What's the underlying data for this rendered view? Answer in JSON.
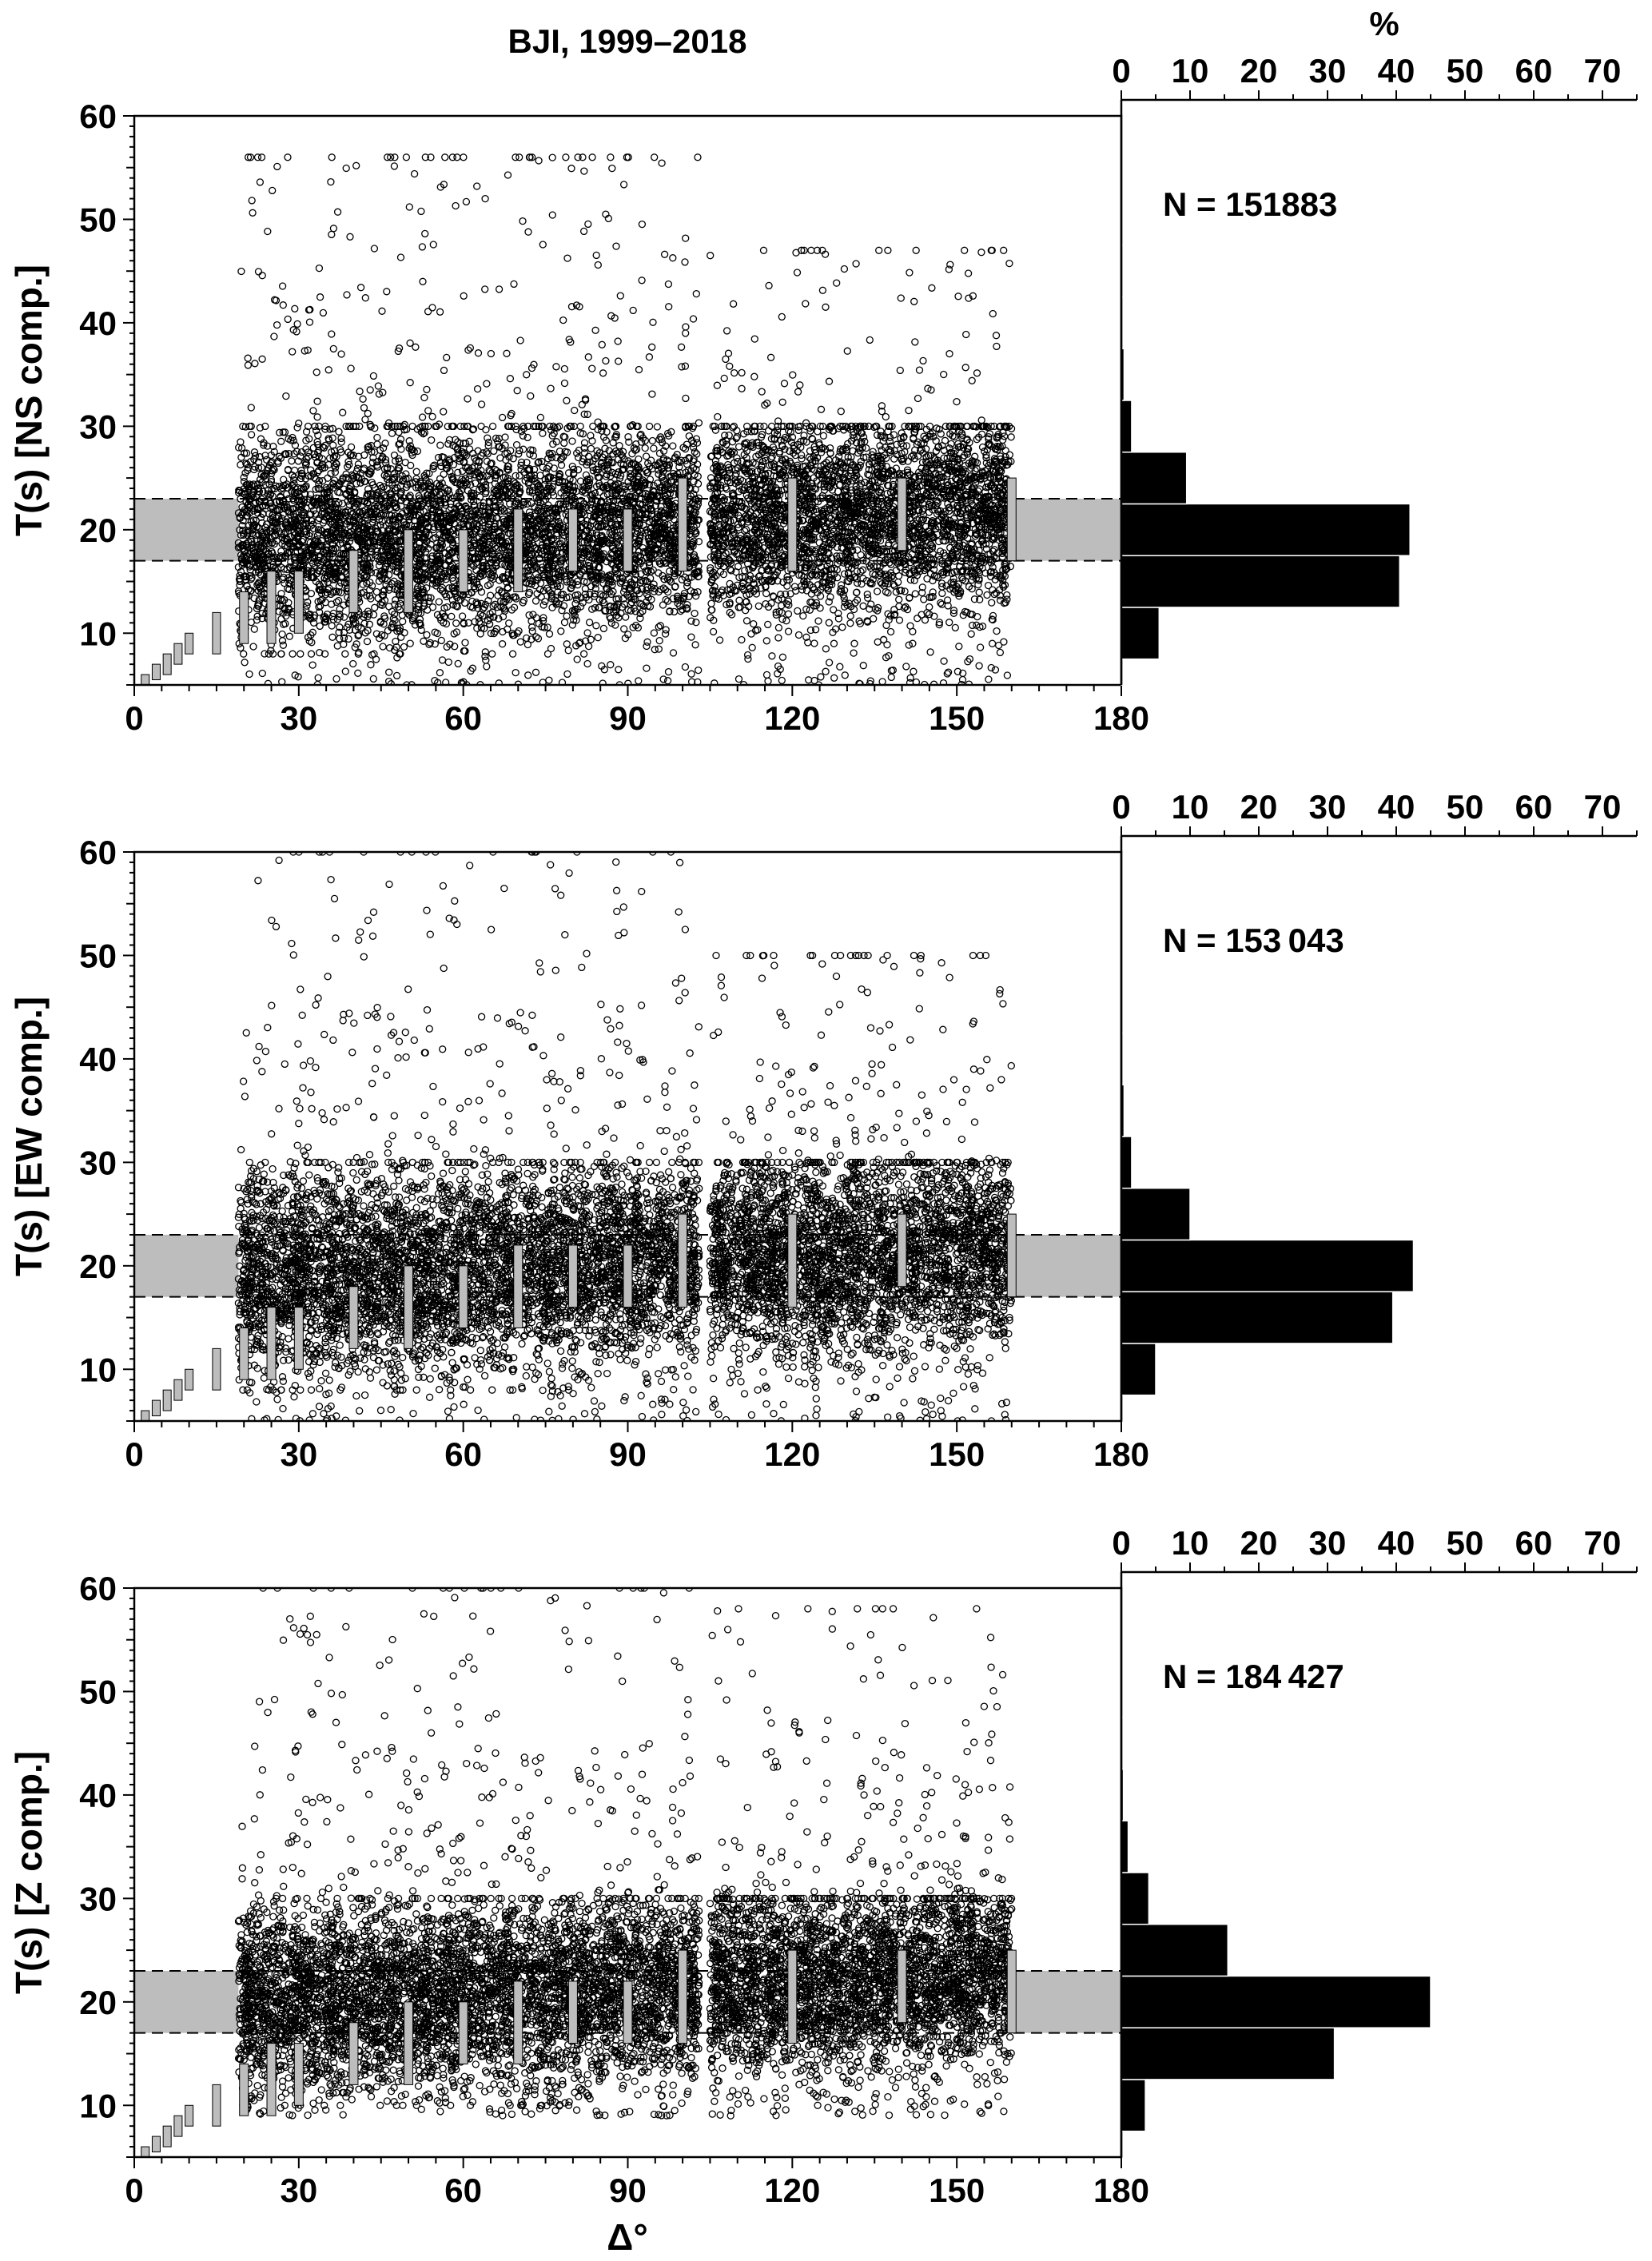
{
  "figure": {
    "title": "BJI, 1999–2018",
    "x_axis_label": "Δ°",
    "hist_axis_label": "%"
  },
  "chart_data": [
    {
      "type": "scatter",
      "panel": "NS",
      "ylabel": "T(s) [NS comp.]",
      "xlabel": "",
      "xlim": [
        0,
        180
      ],
      "ylim": [
        5,
        60
      ],
      "xticks": [
        0,
        30,
        60,
        90,
        120,
        150,
        180
      ],
      "yticks": [
        10,
        20,
        30,
        40,
        50,
        60
      ],
      "n_label": "N = 151883",
      "band": {
        "y_min": 17,
        "y_max": 23,
        "x_ranges": [
          [
            0,
            19
          ],
          [
            160,
            180
          ]
        ]
      },
      "point_cloud": [
        {
          "x_range": [
            19,
            103
          ],
          "dense_y": [
            8,
            30
          ],
          "sparse_y": [
            5,
            56
          ]
        },
        {
          "x_range": [
            105,
            160
          ],
          "dense_y": [
            9,
            30
          ],
          "sparse_y": [
            5,
            47
          ]
        }
      ],
      "range_bars": [
        {
          "x": 2,
          "y": [
            5,
            6
          ]
        },
        {
          "x": 4,
          "y": [
            5.5,
            7
          ]
        },
        {
          "x": 6,
          "y": [
            6,
            8
          ]
        },
        {
          "x": 8,
          "y": [
            7,
            9
          ]
        },
        {
          "x": 10,
          "y": [
            8,
            10
          ]
        },
        {
          "x": 15,
          "y": [
            8,
            12
          ]
        },
        {
          "x": 20,
          "y": [
            9,
            14
          ]
        },
        {
          "x": 25,
          "y": [
            9,
            16
          ]
        },
        {
          "x": 30,
          "y": [
            10,
            16
          ]
        },
        {
          "x": 40,
          "y": [
            12,
            18
          ]
        },
        {
          "x": 50,
          "y": [
            12,
            20
          ]
        },
        {
          "x": 60,
          "y": [
            14,
            20
          ]
        },
        {
          "x": 70,
          "y": [
            14,
            22
          ]
        },
        {
          "x": 80,
          "y": [
            16,
            22
          ]
        },
        {
          "x": 90,
          "y": [
            16,
            22
          ]
        },
        {
          "x": 100,
          "y": [
            16,
            25
          ]
        },
        {
          "x": 120,
          "y": [
            16,
            25
          ]
        },
        {
          "x": 140,
          "y": [
            18,
            25
          ]
        },
        {
          "x": 160,
          "y": [
            17,
            25
          ]
        }
      ],
      "histogram": {
        "xlim": [
          0,
          75
        ],
        "xticks": [
          0,
          10,
          20,
          30,
          40,
          50,
          60,
          70
        ],
        "bins": [
          {
            "y": [
              5,
              7.5
            ],
            "pct": 0.1
          },
          {
            "y": [
              7.5,
              12.5
            ],
            "pct": 5.5
          },
          {
            "y": [
              12.5,
              17.5
            ],
            "pct": 40.5
          },
          {
            "y": [
              17.5,
              22.5
            ],
            "pct": 42
          },
          {
            "y": [
              22.5,
              27.5
            ],
            "pct": 9.5
          },
          {
            "y": [
              27.5,
              32.5
            ],
            "pct": 1.5
          },
          {
            "y": [
              32.5,
              37.5
            ],
            "pct": 0.4
          },
          {
            "y": [
              37.5,
              42.5
            ],
            "pct": 0.15
          },
          {
            "y": [
              42.5,
              47.5
            ],
            "pct": 0.05
          }
        ]
      }
    },
    {
      "type": "scatter",
      "panel": "EW",
      "ylabel": "T(s) [EW comp.]",
      "xlabel": "",
      "xlim": [
        0,
        180
      ],
      "ylim": [
        5,
        60
      ],
      "xticks": [
        0,
        30,
        60,
        90,
        120,
        150,
        180
      ],
      "yticks": [
        10,
        20,
        30,
        40,
        50,
        60
      ],
      "n_label": "N = 153 043",
      "band": {
        "y_min": 17,
        "y_max": 23,
        "x_ranges": [
          [
            0,
            19
          ],
          [
            160,
            180
          ]
        ]
      },
      "point_cloud": [
        {
          "x_range": [
            19,
            103
          ],
          "dense_y": [
            8,
            30
          ],
          "sparse_y": [
            5,
            60
          ]
        },
        {
          "x_range": [
            105,
            160
          ],
          "dense_y": [
            8,
            30
          ],
          "sparse_y": [
            5,
            50
          ]
        }
      ],
      "range_bars": [
        {
          "x": 2,
          "y": [
            5,
            6
          ]
        },
        {
          "x": 4,
          "y": [
            5.5,
            7
          ]
        },
        {
          "x": 6,
          "y": [
            6,
            8
          ]
        },
        {
          "x": 8,
          "y": [
            7,
            9
          ]
        },
        {
          "x": 10,
          "y": [
            8,
            10
          ]
        },
        {
          "x": 15,
          "y": [
            8,
            12
          ]
        },
        {
          "x": 20,
          "y": [
            9,
            14
          ]
        },
        {
          "x": 25,
          "y": [
            9,
            16
          ]
        },
        {
          "x": 30,
          "y": [
            10,
            16
          ]
        },
        {
          "x": 40,
          "y": [
            12,
            18
          ]
        },
        {
          "x": 50,
          "y": [
            12,
            20
          ]
        },
        {
          "x": 60,
          "y": [
            14,
            20
          ]
        },
        {
          "x": 70,
          "y": [
            14,
            22
          ]
        },
        {
          "x": 80,
          "y": [
            16,
            22
          ]
        },
        {
          "x": 90,
          "y": [
            16,
            22
          ]
        },
        {
          "x": 100,
          "y": [
            16,
            25
          ]
        },
        {
          "x": 120,
          "y": [
            16,
            25
          ]
        },
        {
          "x": 140,
          "y": [
            18,
            25
          ]
        },
        {
          "x": 160,
          "y": [
            17,
            25
          ]
        }
      ],
      "histogram": {
        "xlim": [
          0,
          75
        ],
        "xticks": [
          0,
          10,
          20,
          30,
          40,
          50,
          60,
          70
        ],
        "bins": [
          {
            "y": [
              7.5,
              12.5
            ],
            "pct": 5
          },
          {
            "y": [
              12.5,
              17.5
            ],
            "pct": 39.5
          },
          {
            "y": [
              17.5,
              22.5
            ],
            "pct": 42.5
          },
          {
            "y": [
              22.5,
              27.5
            ],
            "pct": 10
          },
          {
            "y": [
              27.5,
              32.5
            ],
            "pct": 1.5
          },
          {
            "y": [
              32.5,
              37.5
            ],
            "pct": 0.4
          },
          {
            "y": [
              37.5,
              42.5
            ],
            "pct": 0.15
          }
        ]
      }
    },
    {
      "type": "scatter",
      "panel": "Z",
      "ylabel": "T(s) [Z comp.]",
      "xlabel": "Δ°",
      "xlim": [
        0,
        180
      ],
      "ylim": [
        5,
        60
      ],
      "xticks": [
        0,
        30,
        60,
        90,
        120,
        150,
        180
      ],
      "yticks": [
        10,
        20,
        30,
        40,
        50,
        60
      ],
      "n_label": "N = 184 427",
      "band": {
        "y_min": 17,
        "y_max": 23,
        "x_ranges": [
          [
            0,
            19
          ],
          [
            160,
            180
          ]
        ]
      },
      "point_cloud": [
        {
          "x_range": [
            19,
            103
          ],
          "dense_y": [
            10,
            30
          ],
          "sparse_y": [
            9,
            60
          ]
        },
        {
          "x_range": [
            105,
            160
          ],
          "dense_y": [
            10,
            30
          ],
          "sparse_y": [
            9,
            58
          ]
        }
      ],
      "range_bars": [
        {
          "x": 2,
          "y": [
            5,
            6
          ]
        },
        {
          "x": 4,
          "y": [
            5.5,
            7
          ]
        },
        {
          "x": 6,
          "y": [
            6,
            8
          ]
        },
        {
          "x": 8,
          "y": [
            7,
            9
          ]
        },
        {
          "x": 10,
          "y": [
            8,
            10
          ]
        },
        {
          "x": 15,
          "y": [
            8,
            12
          ]
        },
        {
          "x": 20,
          "y": [
            9,
            14
          ]
        },
        {
          "x": 25,
          "y": [
            9,
            16
          ]
        },
        {
          "x": 30,
          "y": [
            10,
            16
          ]
        },
        {
          "x": 40,
          "y": [
            12,
            18
          ]
        },
        {
          "x": 50,
          "y": [
            12,
            20
          ]
        },
        {
          "x": 60,
          "y": [
            14,
            20
          ]
        },
        {
          "x": 70,
          "y": [
            14,
            22
          ]
        },
        {
          "x": 80,
          "y": [
            16,
            22
          ]
        },
        {
          "x": 90,
          "y": [
            16,
            22
          ]
        },
        {
          "x": 100,
          "y": [
            16,
            25
          ]
        },
        {
          "x": 120,
          "y": [
            16,
            25
          ]
        },
        {
          "x": 140,
          "y": [
            18,
            25
          ]
        },
        {
          "x": 160,
          "y": [
            17,
            25
          ]
        }
      ],
      "histogram": {
        "xlim": [
          0,
          75
        ],
        "xticks": [
          0,
          10,
          20,
          30,
          40,
          50,
          60,
          70
        ],
        "bins": [
          {
            "y": [
              7.5,
              12.5
            ],
            "pct": 3.5
          },
          {
            "y": [
              12.5,
              17.5
            ],
            "pct": 31
          },
          {
            "y": [
              17.5,
              22.5
            ],
            "pct": 45
          },
          {
            "y": [
              22.5,
              27.5
            ],
            "pct": 15.5
          },
          {
            "y": [
              27.5,
              32.5
            ],
            "pct": 4
          },
          {
            "y": [
              32.5,
              37.5
            ],
            "pct": 1
          },
          {
            "y": [
              37.5,
              42.5
            ],
            "pct": 0.3
          },
          {
            "y": [
              42.5,
              47.5
            ],
            "pct": 0.1
          }
        ]
      }
    }
  ]
}
